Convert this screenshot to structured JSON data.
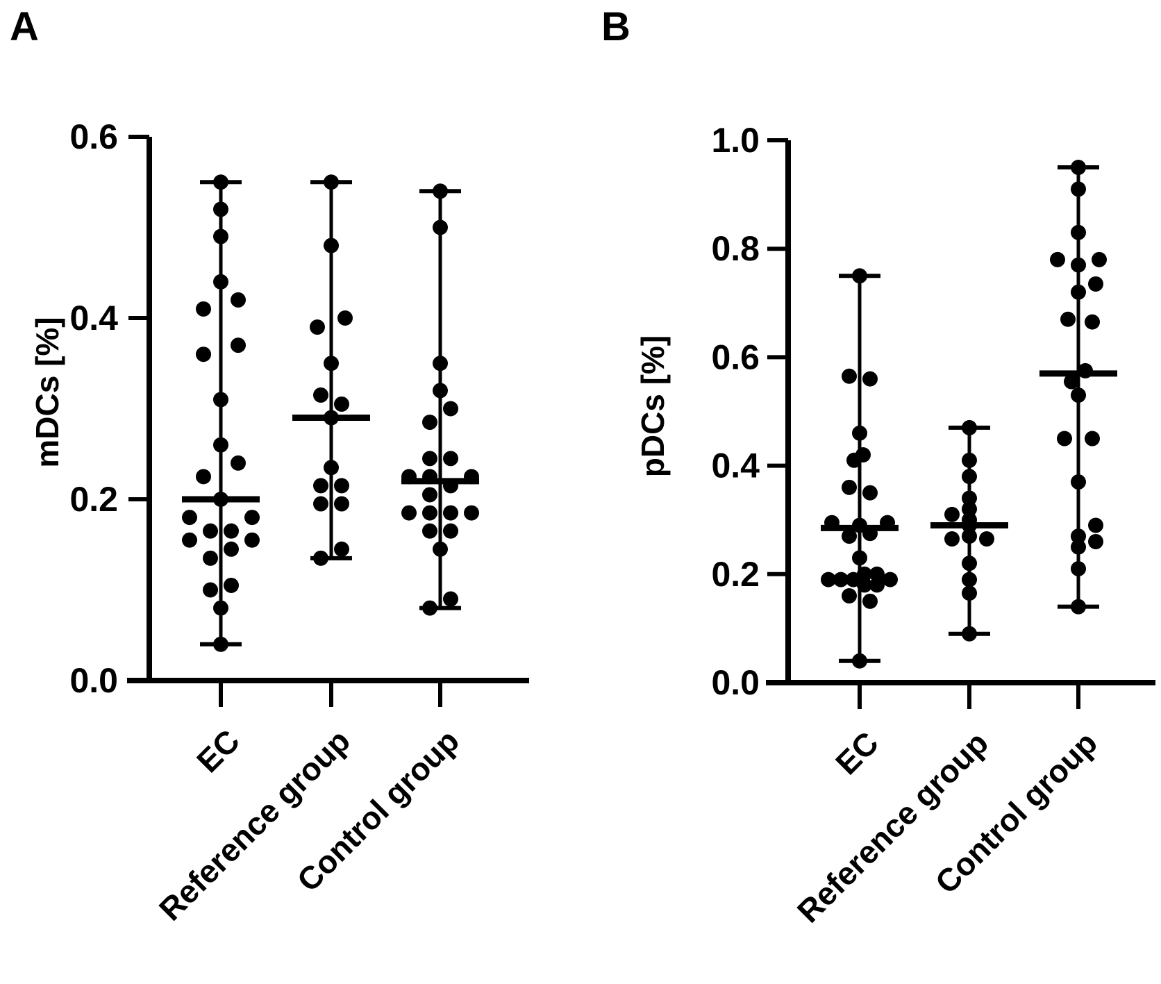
{
  "figure": {
    "background": "#ffffff",
    "ink_color": "#000000",
    "description": "Two dot plots with median and min-max whiskers"
  },
  "chart_data": [
    {
      "type": "scatter",
      "panel_letter": "A",
      "title": "",
      "xlabel": "",
      "ylabel": "mDCs [%]",
      "ylim": [
        0.0,
        0.6
      ],
      "yticks": [
        [
          0.0,
          "0.0"
        ],
        [
          0.2,
          "0.2"
        ],
        [
          0.4,
          "0.4"
        ],
        [
          0.6,
          "0.6"
        ]
      ],
      "categories": [
        "EC",
        "Reference group",
        "Control group"
      ],
      "grid": false,
      "legend": null,
      "marker": "filled-circle-with-median-and-range",
      "series": [
        {
          "name": "EC",
          "median": 0.2,
          "min": 0.04,
          "max": 0.55,
          "points": [
            [
              0.55,
              0
            ],
            [
              0.52,
              0
            ],
            [
              0.49,
              0
            ],
            [
              0.44,
              0
            ],
            [
              0.42,
              25
            ],
            [
              0.41,
              -25
            ],
            [
              0.37,
              25
            ],
            [
              0.36,
              -25
            ],
            [
              0.31,
              0
            ],
            [
              0.26,
              0
            ],
            [
              0.24,
              25
            ],
            [
              0.225,
              -25
            ],
            [
              0.2,
              0
            ],
            [
              0.18,
              -45
            ],
            [
              0.18,
              45
            ],
            [
              0.165,
              -15
            ],
            [
              0.165,
              15
            ],
            [
              0.155,
              -45
            ],
            [
              0.155,
              45
            ],
            [
              0.145,
              15
            ],
            [
              0.135,
              -15
            ],
            [
              0.105,
              15
            ],
            [
              0.1,
              -15
            ],
            [
              0.08,
              0
            ],
            [
              0.04,
              0
            ]
          ]
        },
        {
          "name": "Reference group",
          "median": 0.29,
          "min": 0.135,
          "max": 0.55,
          "points": [
            [
              0.55,
              0
            ],
            [
              0.48,
              0
            ],
            [
              0.4,
              20
            ],
            [
              0.39,
              -20
            ],
            [
              0.35,
              0
            ],
            [
              0.315,
              -15
            ],
            [
              0.305,
              15
            ],
            [
              0.29,
              0
            ],
            [
              0.235,
              0
            ],
            [
              0.215,
              -15
            ],
            [
              0.215,
              15
            ],
            [
              0.195,
              -15
            ],
            [
              0.195,
              15
            ],
            [
              0.145,
              15
            ],
            [
              0.135,
              -15
            ]
          ]
        },
        {
          "name": "Control group",
          "median": 0.22,
          "min": 0.08,
          "max": 0.54,
          "points": [
            [
              0.54,
              0
            ],
            [
              0.5,
              0
            ],
            [
              0.35,
              0
            ],
            [
              0.32,
              0
            ],
            [
              0.3,
              15
            ],
            [
              0.285,
              -15
            ],
            [
              0.245,
              -15
            ],
            [
              0.245,
              15
            ],
            [
              0.225,
              -45
            ],
            [
              0.225,
              -15
            ],
            [
              0.225,
              45
            ],
            [
              0.215,
              15
            ],
            [
              0.205,
              -15
            ],
            [
              0.185,
              -45
            ],
            [
              0.185,
              -15
            ],
            [
              0.185,
              15
            ],
            [
              0.185,
              45
            ],
            [
              0.165,
              -15
            ],
            [
              0.165,
              15
            ],
            [
              0.145,
              0
            ],
            [
              0.09,
              15
            ],
            [
              0.08,
              -15
            ]
          ]
        }
      ]
    },
    {
      "type": "scatter",
      "panel_letter": "B",
      "title": "",
      "xlabel": "",
      "ylabel": "pDCs [%]",
      "ylim": [
        0.0,
        1.0
      ],
      "yticks": [
        [
          0.0,
          "0.0"
        ],
        [
          0.2,
          "0.2"
        ],
        [
          0.4,
          "0.4"
        ],
        [
          0.6,
          "0.6"
        ],
        [
          0.8,
          "0.8"
        ],
        [
          1.0,
          "1.0"
        ]
      ],
      "categories": [
        "EC",
        "Reference group",
        "Control group"
      ],
      "grid": false,
      "legend": null,
      "marker": "filled-circle-with-median-and-range",
      "series": [
        {
          "name": "EC",
          "median": 0.285,
          "min": 0.04,
          "max": 0.75,
          "points": [
            [
              0.75,
              0
            ],
            [
              0.565,
              -15
            ],
            [
              0.56,
              15
            ],
            [
              0.46,
              0
            ],
            [
              0.42,
              5
            ],
            [
              0.41,
              -8
            ],
            [
              0.36,
              -15
            ],
            [
              0.35,
              15
            ],
            [
              0.295,
              -40
            ],
            [
              0.295,
              40
            ],
            [
              0.29,
              0
            ],
            [
              0.275,
              15
            ],
            [
              0.27,
              -15
            ],
            [
              0.23,
              0
            ],
            [
              0.2,
              7
            ],
            [
              0.2,
              25
            ],
            [
              0.19,
              -45
            ],
            [
              0.19,
              -27
            ],
            [
              0.19,
              -9
            ],
            [
              0.19,
              44
            ],
            [
              0.18,
              7
            ],
            [
              0.18,
              25
            ],
            [
              0.16,
              -15
            ],
            [
              0.15,
              15
            ],
            [
              0.04,
              0
            ]
          ]
        },
        {
          "name": "Reference group",
          "median": 0.29,
          "min": 0.09,
          "max": 0.47,
          "points": [
            [
              0.47,
              0
            ],
            [
              0.41,
              0
            ],
            [
              0.38,
              0
            ],
            [
              0.34,
              0
            ],
            [
              0.32,
              0
            ],
            [
              0.31,
              -25
            ],
            [
              0.3,
              0
            ],
            [
              0.29,
              0
            ],
            [
              0.27,
              0
            ],
            [
              0.265,
              -25
            ],
            [
              0.265,
              25
            ],
            [
              0.22,
              0
            ],
            [
              0.19,
              0
            ],
            [
              0.165,
              0
            ],
            [
              0.09,
              0
            ]
          ]
        },
        {
          "name": "Control group",
          "median": 0.57,
          "min": 0.14,
          "max": 0.95,
          "points": [
            [
              0.95,
              0
            ],
            [
              0.91,
              0
            ],
            [
              0.83,
              0
            ],
            [
              0.78,
              -30
            ],
            [
              0.78,
              30
            ],
            [
              0.77,
              0
            ],
            [
              0.735,
              25
            ],
            [
              0.72,
              0
            ],
            [
              0.67,
              -15
            ],
            [
              0.665,
              20
            ],
            [
              0.575,
              10
            ],
            [
              0.555,
              -10
            ],
            [
              0.53,
              0
            ],
            [
              0.45,
              -20
            ],
            [
              0.45,
              20
            ],
            [
              0.37,
              0
            ],
            [
              0.29,
              25
            ],
            [
              0.27,
              0
            ],
            [
              0.26,
              25
            ],
            [
              0.25,
              0
            ],
            [
              0.21,
              0
            ],
            [
              0.14,
              0
            ]
          ]
        }
      ]
    }
  ]
}
